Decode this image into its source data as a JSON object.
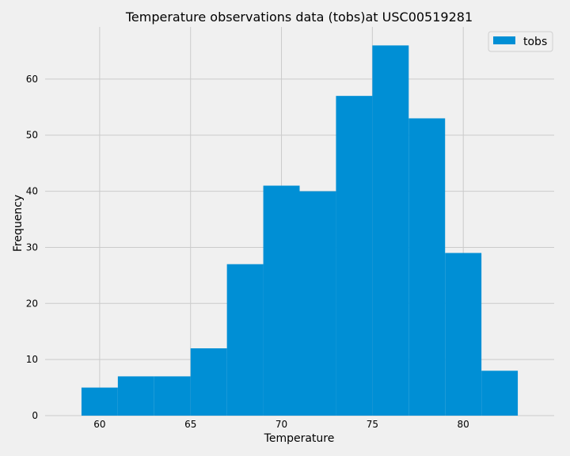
{
  "chart_data": {
    "type": "bar",
    "title": "Temperature observations data (tobs)at USC00519281",
    "xlabel": "Temperature",
    "ylabel": "Frequency",
    "bin_edges": [
      59,
      61,
      63,
      65,
      67,
      69,
      71,
      73,
      75,
      77,
      79,
      81,
      83
    ],
    "values": [
      5,
      7,
      7,
      12,
      27,
      41,
      40,
      57,
      66,
      53,
      29,
      8
    ],
    "xlim": [
      57,
      85
    ],
    "ylim": [
      0,
      69.3
    ],
    "xticks": [
      60,
      65,
      70,
      75,
      80
    ],
    "yticks": [
      0,
      10,
      20,
      30,
      40,
      50,
      60
    ],
    "grid": true,
    "legend": {
      "entries": [
        "tobs"
      ],
      "placement": "top-right"
    },
    "colors": {
      "bar": "#008fd5",
      "background": "#f0f0f0",
      "grid": "#cbcbcb"
    }
  }
}
